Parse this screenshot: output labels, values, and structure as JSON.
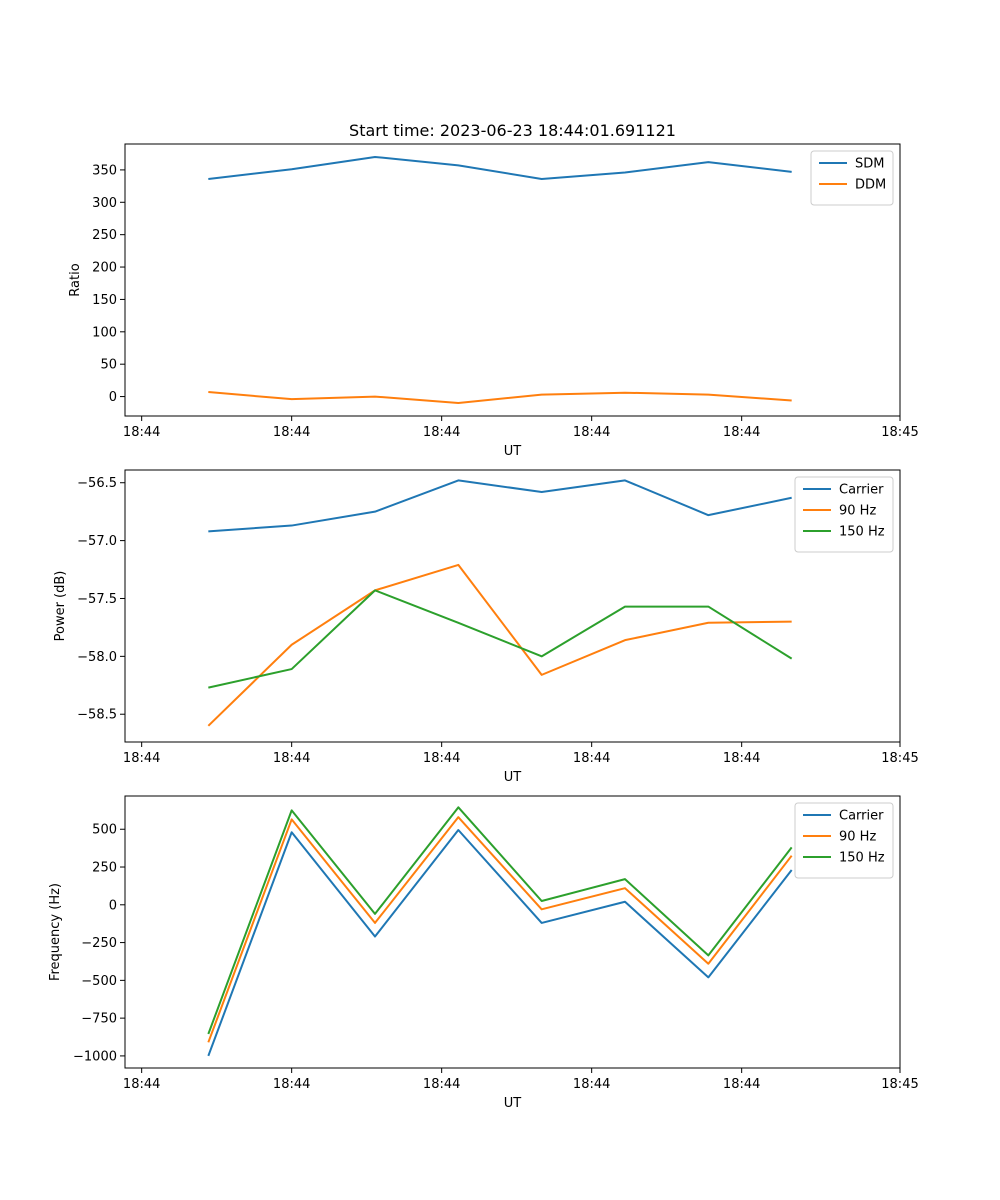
{
  "figure_title": "Start time: 2023-06-23 18:44:01.691121",
  "colors": {
    "blue": "#1f77b4",
    "orange": "#ff7f0e",
    "green": "#2ca02c"
  },
  "chart_data": [
    {
      "type": "line",
      "title": "Start time: 2023-06-23 18:44:01.691121",
      "xlabel": "UT",
      "ylabel": "Ratio",
      "xlim": [
        0,
        9.3
      ],
      "x": [
        1,
        2,
        3,
        4,
        5,
        6,
        7,
        8
      ],
      "x_ticks": [
        0.2,
        2,
        3.8,
        5.6,
        7.4,
        9.3
      ],
      "x_tick_labels": [
        "18:44",
        "18:44",
        "18:44",
        "18:44",
        "18:44",
        "18:45"
      ],
      "ylim": [
        -30,
        390
      ],
      "y_ticks": [
        0,
        50,
        100,
        150,
        200,
        250,
        300,
        350
      ],
      "y_tick_labels": [
        "0",
        "50",
        "100",
        "150",
        "200",
        "250",
        "300",
        "350"
      ],
      "legend_position": "top-right",
      "series": [
        {
          "name": "SDM",
          "color": "#1f77b4",
          "values": [
            336,
            351,
            370,
            357,
            336,
            346,
            362,
            347
          ]
        },
        {
          "name": "DDM",
          "color": "#ff7f0e",
          "values": [
            7,
            -4,
            0,
            -10,
            3,
            6,
            3,
            -6
          ]
        }
      ]
    },
    {
      "type": "line",
      "title": "",
      "xlabel": "UT",
      "ylabel": "Power (dB)",
      "xlim": [
        0,
        9.3
      ],
      "x": [
        1,
        2,
        3,
        4,
        5,
        6,
        7,
        8
      ],
      "x_ticks": [
        0.2,
        2,
        3.8,
        5.6,
        7.4,
        9.3
      ],
      "x_tick_labels": [
        "18:44",
        "18:44",
        "18:44",
        "18:44",
        "18:44",
        "18:45"
      ],
      "ylim": [
        -58.74,
        -56.39
      ],
      "y_ticks": [
        -58.5,
        -58.0,
        -57.5,
        -57.0,
        -56.5
      ],
      "y_tick_labels": [
        "−58.5",
        "−58.0",
        "−57.5",
        "−57.0",
        "−56.5"
      ],
      "legend_position": "top-right",
      "series": [
        {
          "name": "Carrier",
          "color": "#1f77b4",
          "values": [
            -56.92,
            -56.87,
            -56.75,
            -56.48,
            -56.58,
            -56.48,
            -56.78,
            -56.63
          ]
        },
        {
          "name": "90 Hz",
          "color": "#ff7f0e",
          "values": [
            -58.6,
            -57.9,
            -57.43,
            -57.21,
            -58.16,
            -57.86,
            -57.71,
            -57.7
          ]
        },
        {
          "name": "150 Hz",
          "color": "#2ca02c",
          "values": [
            -58.27,
            -58.11,
            -57.43,
            -57.71,
            -58.0,
            -57.57,
            -57.57,
            -58.02
          ]
        }
      ]
    },
    {
      "type": "line",
      "title": "",
      "xlabel": "UT",
      "ylabel": "Frequency (Hz)",
      "xlim": [
        0,
        9.3
      ],
      "x": [
        1,
        2,
        3,
        4,
        5,
        6,
        7,
        8
      ],
      "x_ticks": [
        0.2,
        2,
        3.8,
        5.6,
        7.4,
        9.3
      ],
      "x_tick_labels": [
        "18:44",
        "18:44",
        "18:44",
        "18:44",
        "18:44",
        "18:45"
      ],
      "ylim": [
        -1080,
        720
      ],
      "y_ticks": [
        -1000,
        -750,
        -500,
        -250,
        0,
        250,
        500
      ],
      "y_tick_labels": [
        "−1000",
        "−750",
        "−500",
        "−250",
        "0",
        "250",
        "500"
      ],
      "legend_position": "top-right",
      "series": [
        {
          "name": "Carrier",
          "color": "#1f77b4",
          "values": [
            -1000,
            480,
            -210,
            495,
            -120,
            20,
            -480,
            230
          ]
        },
        {
          "name": "90 Hz",
          "color": "#ff7f0e",
          "values": [
            -910,
            565,
            -120,
            580,
            -30,
            110,
            -390,
            325
          ]
        },
        {
          "name": "150 Hz",
          "color": "#2ca02c",
          "values": [
            -855,
            625,
            -60,
            645,
            25,
            170,
            -335,
            380
          ]
        }
      ]
    }
  ]
}
